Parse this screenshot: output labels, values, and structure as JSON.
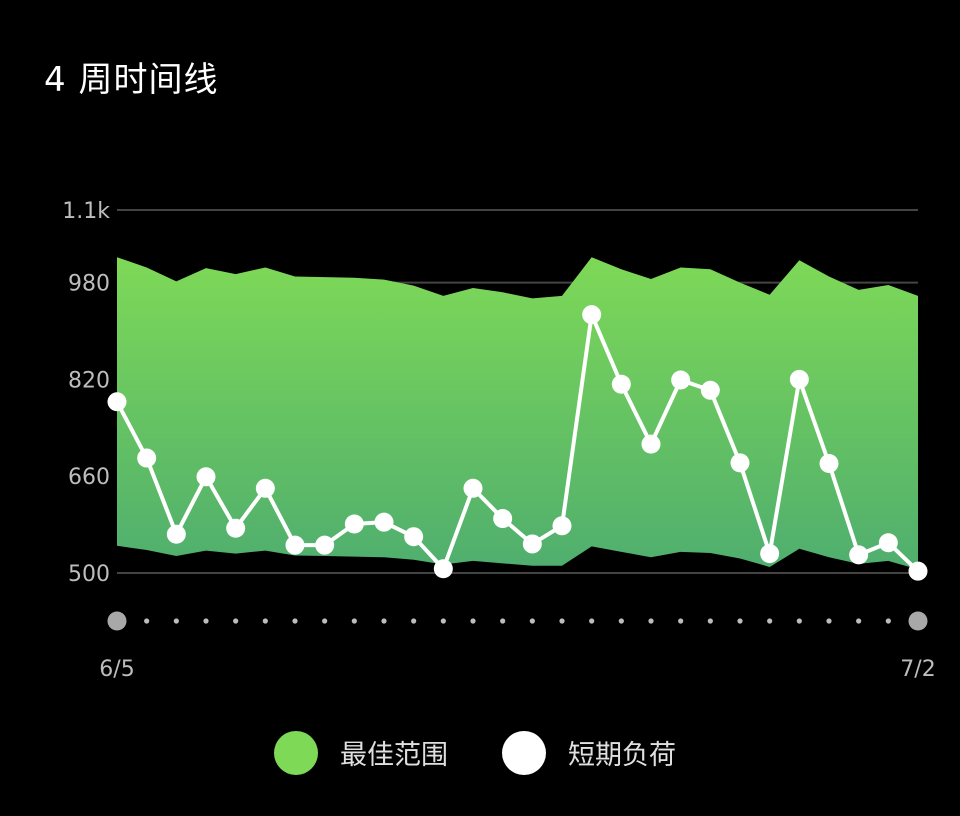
{
  "header": {
    "title": "4 周时间线"
  },
  "chart_data": {
    "type": "area",
    "x_start_label": "6/5",
    "x_end_label": "7/2",
    "y_ticks": [
      {
        "value": 500,
        "label": "500"
      },
      {
        "value": 660,
        "label": "660"
      },
      {
        "value": 820,
        "label": "820"
      },
      {
        "value": 980,
        "label": "980"
      },
      {
        "value": 1100,
        "label": "1.1k"
      }
    ],
    "ylim": [
      500,
      1100
    ],
    "grid_lines_at": [
      500,
      980,
      1100
    ],
    "series": [
      {
        "name": "最佳范围",
        "kind": "band",
        "color": "#7ed957",
        "upper": [
          1022,
          1005,
          982,
          1004,
          994,
          1005,
          990,
          989,
          988,
          985,
          975,
          958,
          971,
          964,
          954,
          958,
          1022,
          1002,
          986,
          1005,
          1002,
          980,
          960,
          1017,
          990,
          968,
          976,
          958
        ],
        "lower": [
          545,
          538,
          528,
          537,
          532,
          537,
          529,
          528,
          527,
          526,
          522,
          514,
          520,
          516,
          512,
          512,
          544,
          535,
          526,
          535,
          533,
          524,
          510,
          540,
          526,
          515,
          520,
          506
        ]
      },
      {
        "name": "短期负荷",
        "kind": "line",
        "color": "#ffffff",
        "values": [
          783,
          690,
          564,
          659,
          574,
          640,
          546,
          546,
          581,
          584,
          560,
          507,
          640,
          590,
          548,
          578,
          927,
          812,
          713,
          819,
          802,
          682,
          532,
          820,
          681,
          530,
          550,
          503
        ]
      }
    ],
    "legend": {
      "placement": "bottom-center"
    },
    "slider": {
      "start": "6/5",
      "end": "7/2"
    }
  }
}
